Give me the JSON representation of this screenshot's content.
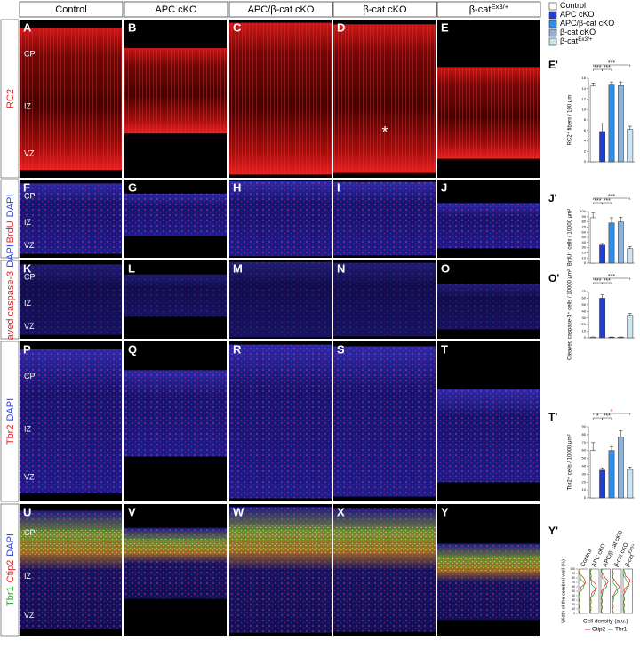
{
  "columns": [
    {
      "text": "Control"
    },
    {
      "text": "APC cKO"
    },
    {
      "text": "APC/β-cat cKO"
    },
    {
      "text": "β-cat cKO"
    },
    {
      "text": "β-cat",
      "sup": "Ex3/+"
    }
  ],
  "rows": [
    {
      "label": [
        {
          "text": "RC2",
          "color": "#e8202a"
        }
      ],
      "panels": [
        "A",
        "B",
        "C",
        "D",
        "E"
      ],
      "layers": [
        "CP",
        "IZ",
        "VZ"
      ],
      "mark": "*"
    },
    {
      "label": [
        {
          "text": "BrdU",
          "color": "#e8202a"
        },
        {
          "text": "DAPI",
          "color": "#2a3fd8"
        }
      ],
      "panels": [
        "F",
        "G",
        "H",
        "I",
        "J"
      ],
      "layers": [
        "CP",
        "IZ",
        "VZ"
      ]
    },
    {
      "label": [
        {
          "text": "Cleaved caspase-3",
          "color": "#e8202a"
        },
        {
          "text": "DAPI",
          "color": "#2a3fd8"
        }
      ],
      "panels": [
        "K",
        "L",
        "M",
        "N",
        "O"
      ],
      "layers": [
        "CP",
        "IZ",
        "VZ"
      ]
    },
    {
      "label": [
        {
          "text": "Tbr2",
          "color": "#e8202a"
        },
        {
          "text": "DAPI",
          "color": "#2a3fd8"
        }
      ],
      "panels": [
        "P",
        "Q",
        "R",
        "S",
        "T"
      ],
      "layers": [
        "CP",
        "IZ",
        "VZ"
      ]
    },
    {
      "label": [
        {
          "text": "Tbr1",
          "color": "#2aa02a"
        },
        {
          "text": "Ctip2",
          "color": "#e8202a"
        },
        {
          "text": "DAPI",
          "color": "#2a3fd8"
        }
      ],
      "panels": [
        "U",
        "V",
        "W",
        "X",
        "Y"
      ],
      "layers": [
        "CP",
        "IZ",
        "VZ"
      ]
    }
  ],
  "legend": [
    {
      "text": "Control",
      "color": "#ffffff"
    },
    {
      "text": "APC cKO",
      "color": "#1f3fd6"
    },
    {
      "text": "APC/β-cat cKO",
      "color": "#2d8fe8"
    },
    {
      "text": "β-cat cKO",
      "color": "#8fb2d8"
    },
    {
      "text": "β-cat",
      "sup": "Ex3/+",
      "color": "#cde3f0"
    }
  ],
  "charts": [
    {
      "panel": "E'",
      "ylabel": "RC2⁺ fibers / 100 μm",
      "ylim": [
        0,
        16
      ],
      "yticks": [
        0,
        2,
        4,
        6,
        8,
        10,
        12,
        14,
        16
      ],
      "values": [
        14.5,
        5.8,
        14.7,
        14.6,
        6.2
      ],
      "errors": [
        0.6,
        1.5,
        0.6,
        0.7,
        0.6
      ],
      "significance": [
        {
          "text": "***",
          "pair": [
            0,
            1
          ]
        },
        {
          "text": "***",
          "pair": [
            1,
            2
          ]
        },
        {
          "text": "***",
          "pair": [
            0,
            4
          ]
        }
      ]
    },
    {
      "panel": "J'",
      "ylabel": "BrdU⁺ cells / 10000 μm²",
      "ylim": [
        0,
        100
      ],
      "yticks": [
        0,
        10,
        20,
        30,
        40,
        50,
        60,
        70,
        80,
        90,
        100
      ],
      "values": [
        88,
        35,
        78,
        80,
        28
      ],
      "errors": [
        10,
        3,
        10,
        9,
        4
      ],
      "significance": [
        {
          "text": "***",
          "pair": [
            0,
            1
          ]
        },
        {
          "text": "***",
          "pair": [
            1,
            2
          ]
        },
        {
          "text": "***",
          "pair": [
            0,
            4
          ]
        }
      ]
    },
    {
      "panel": "O'",
      "ylabel": "Cleaved caspase-3⁺ cells / 10000 μm²",
      "ylim": [
        0,
        70
      ],
      "yticks": [
        0,
        10,
        20,
        30,
        40,
        50,
        60,
        70
      ],
      "values": [
        1,
        60,
        1,
        1,
        34
      ],
      "errors": [
        0.3,
        5,
        0.3,
        0.3,
        3
      ],
      "significance": [
        {
          "text": "***",
          "pair": [
            0,
            1
          ]
        },
        {
          "text": "***",
          "pair": [
            1,
            2
          ]
        },
        {
          "text": "***",
          "pair": [
            0,
            4
          ]
        }
      ]
    },
    {
      "panel": "T'",
      "ylabel": "Tbr2⁺ cells / 10000 μm²",
      "ylim": [
        0,
        90
      ],
      "yticks": [
        0,
        10,
        20,
        30,
        40,
        50,
        60,
        70,
        80,
        90
      ],
      "values": [
        60,
        35,
        60,
        77,
        36
      ],
      "errors": [
        10,
        3,
        5,
        8,
        3
      ],
      "significance": [
        {
          "text": "*",
          "pair": [
            0,
            1
          ]
        },
        {
          "text": "***",
          "pair": [
            1,
            2
          ]
        },
        {
          "text": "*",
          "pair": [
            0,
            4
          ]
        }
      ]
    }
  ],
  "profile": {
    "panel": "Y'",
    "columns": [
      {
        "text": "Control"
      },
      {
        "text": "APC cKO"
      },
      {
        "text": "APC/β-cat cKO"
      },
      {
        "text": "β-cat cKO"
      },
      {
        "text": "β-cat",
        "sup": "Ex3/+"
      }
    ],
    "ylabel": "Width of the cerebral wall (%)",
    "xlabel": "Cell density (a.u.)",
    "ylim": [
      0,
      100
    ],
    "yticks": [
      0,
      10,
      20,
      30,
      40,
      50,
      60,
      70,
      80,
      90,
      100
    ],
    "series": [
      {
        "name": "Ctip2",
        "color": "#e8202a"
      },
      {
        "name": "Tbr1",
        "color": "#2aa02a"
      }
    ]
  }
}
